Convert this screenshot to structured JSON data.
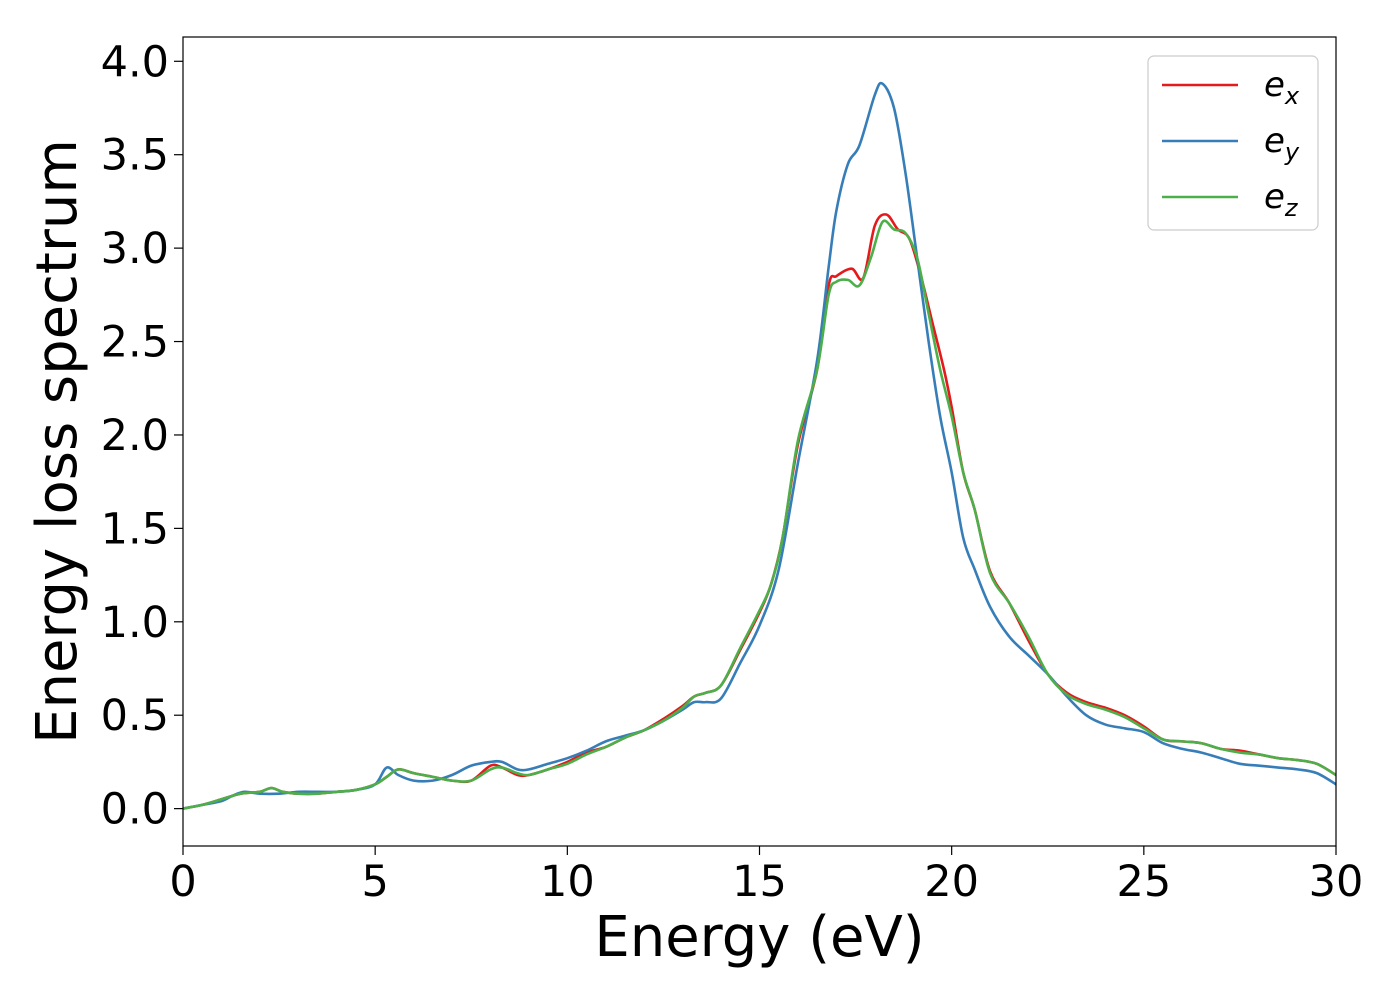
{
  "chart_data": {
    "type": "line",
    "title": "",
    "xlabel": "Energy (eV)",
    "ylabel": "Energy loss spectrum",
    "xlim": [
      0,
      30
    ],
    "ylim": [
      -0.2,
      4.13
    ],
    "xticks": [
      "0",
      "5",
      "10",
      "15",
      "20",
      "25",
      "30"
    ],
    "yticks": [
      "0.0",
      "0.5",
      "1.0",
      "1.5",
      "2.0",
      "2.5",
      "3.0",
      "3.5",
      "4.0"
    ],
    "grid": false,
    "legend_position": "top-right",
    "series": [
      {
        "name": "e_x",
        "label_base": "e",
        "label_sub": "x",
        "color": "#e41a1c",
        "x": [
          0,
          0.5,
          1,
          1.5,
          2,
          2.3,
          2.6,
          3,
          3.5,
          4,
          4.5,
          5,
          5.3,
          5.6,
          6,
          6.5,
          7,
          7.5,
          8,
          8.3,
          8.7,
          9,
          9.5,
          10,
          10.5,
          11,
          11.5,
          12,
          12.5,
          13,
          13.3,
          13.6,
          14,
          14.5,
          15,
          15.3,
          15.6,
          16,
          16.5,
          16.8,
          17,
          17.4,
          17.7,
          18,
          18.3,
          18.6,
          18.9,
          19.2,
          19.5,
          19.8,
          20,
          20.3,
          20.6,
          21,
          21.5,
          22,
          22.5,
          23,
          23.5,
          24,
          24.5,
          25,
          25.5,
          26,
          26.5,
          27,
          27.5,
          28,
          28.5,
          29,
          29.5,
          30
        ],
        "values": [
          0.0,
          0.02,
          0.05,
          0.08,
          0.09,
          0.11,
          0.09,
          0.08,
          0.08,
          0.09,
          0.1,
          0.13,
          0.17,
          0.21,
          0.19,
          0.17,
          0.15,
          0.15,
          0.23,
          0.22,
          0.18,
          0.18,
          0.21,
          0.25,
          0.3,
          0.33,
          0.38,
          0.42,
          0.48,
          0.55,
          0.6,
          0.62,
          0.66,
          0.85,
          1.05,
          1.2,
          1.45,
          1.95,
          2.35,
          2.8,
          2.85,
          2.89,
          2.84,
          3.12,
          3.18,
          3.1,
          3.05,
          2.85,
          2.6,
          2.35,
          2.15,
          1.8,
          1.6,
          1.27,
          1.1,
          0.9,
          0.72,
          0.62,
          0.57,
          0.54,
          0.5,
          0.44,
          0.37,
          0.36,
          0.35,
          0.32,
          0.31,
          0.29,
          0.27,
          0.26,
          0.24,
          0.18
        ]
      },
      {
        "name": "e_y",
        "label_base": "e",
        "label_sub": "y",
        "color": "#377eb8",
        "x": [
          0,
          0.5,
          1,
          1.3,
          1.6,
          2,
          2.5,
          3,
          3.5,
          4,
          4.5,
          5,
          5.3,
          5.6,
          6,
          6.5,
          7,
          7.5,
          8,
          8.3,
          8.7,
          9,
          9.5,
          10,
          10.5,
          11,
          11.5,
          12,
          12.5,
          13,
          13.3,
          13.6,
          14,
          14.5,
          15,
          15.5,
          16,
          16.5,
          16.8,
          17,
          17.3,
          17.6,
          18,
          18.2,
          18.5,
          18.8,
          19.1,
          19.4,
          19.7,
          20,
          20.3,
          20.6,
          21,
          21.5,
          22,
          22.5,
          23,
          23.5,
          24,
          24.5,
          25,
          25.5,
          26,
          26.5,
          27,
          27.5,
          28,
          28.5,
          29,
          29.5,
          30
        ],
        "values": [
          0.0,
          0.02,
          0.04,
          0.07,
          0.09,
          0.08,
          0.08,
          0.09,
          0.09,
          0.09,
          0.1,
          0.13,
          0.22,
          0.18,
          0.15,
          0.15,
          0.18,
          0.23,
          0.25,
          0.25,
          0.21,
          0.21,
          0.24,
          0.27,
          0.31,
          0.36,
          0.39,
          0.42,
          0.47,
          0.53,
          0.57,
          0.57,
          0.59,
          0.78,
          0.98,
          1.28,
          1.85,
          2.4,
          2.9,
          3.2,
          3.45,
          3.55,
          3.82,
          3.88,
          3.75,
          3.4,
          2.95,
          2.5,
          2.1,
          1.8,
          1.45,
          1.28,
          1.08,
          0.92,
          0.82,
          0.72,
          0.6,
          0.5,
          0.45,
          0.43,
          0.41,
          0.35,
          0.32,
          0.3,
          0.27,
          0.24,
          0.23,
          0.22,
          0.21,
          0.19,
          0.13
        ]
      },
      {
        "name": "e_z",
        "label_base": "e",
        "label_sub": "z",
        "color": "#4daf4a",
        "x": [
          0,
          0.5,
          1,
          1.5,
          2,
          2.3,
          2.6,
          3,
          3.5,
          4,
          4.5,
          5,
          5.3,
          5.6,
          6,
          6.5,
          7,
          7.5,
          8,
          8.3,
          8.7,
          9,
          9.5,
          10,
          10.5,
          11,
          11.5,
          12,
          12.5,
          13,
          13.3,
          13.6,
          14,
          14.5,
          15,
          15.3,
          15.6,
          16,
          16.5,
          16.8,
          17,
          17.3,
          17.6,
          17.9,
          18.2,
          18.5,
          18.8,
          19.1,
          19.4,
          19.7,
          20,
          20.3,
          20.6,
          21,
          21.5,
          22,
          22.5,
          23,
          23.5,
          24,
          24.5,
          25,
          25.5,
          26,
          26.5,
          27,
          27.5,
          28,
          28.5,
          29,
          29.5,
          30
        ],
        "values": [
          0.0,
          0.02,
          0.05,
          0.08,
          0.09,
          0.11,
          0.09,
          0.08,
          0.08,
          0.09,
          0.1,
          0.13,
          0.17,
          0.21,
          0.19,
          0.17,
          0.15,
          0.15,
          0.21,
          0.22,
          0.19,
          0.18,
          0.21,
          0.24,
          0.29,
          0.33,
          0.38,
          0.42,
          0.47,
          0.54,
          0.6,
          0.62,
          0.66,
          0.86,
          1.06,
          1.2,
          1.45,
          1.97,
          2.35,
          2.75,
          2.82,
          2.83,
          2.8,
          2.95,
          3.14,
          3.1,
          3.08,
          2.95,
          2.65,
          2.35,
          2.1,
          1.8,
          1.6,
          1.26,
          1.1,
          0.92,
          0.72,
          0.61,
          0.56,
          0.53,
          0.49,
          0.43,
          0.37,
          0.36,
          0.35,
          0.32,
          0.3,
          0.29,
          0.27,
          0.26,
          0.24,
          0.18
        ]
      }
    ]
  }
}
